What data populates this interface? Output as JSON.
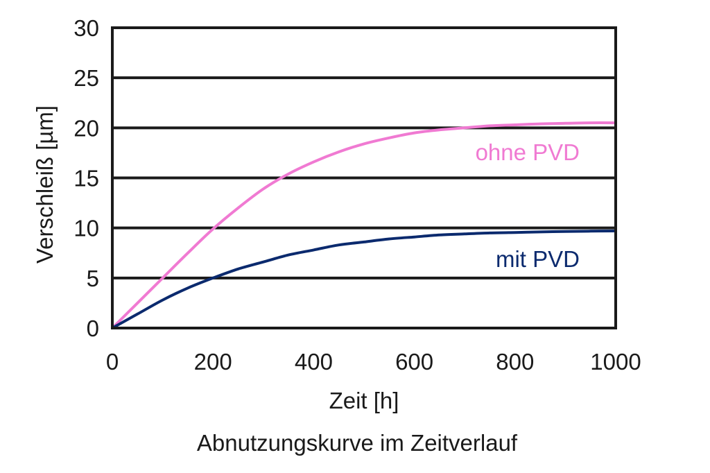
{
  "chart_data": {
    "type": "line",
    "title": "Abnutzungskurve im Zeitverlauf",
    "xlabel": "Zeit [h]",
    "ylabel": "Verschleiß [µm]",
    "xlim": [
      0,
      1000
    ],
    "ylim": [
      0,
      30
    ],
    "xticks": [
      0,
      200,
      400,
      600,
      800,
      1000
    ],
    "yticks": [
      0,
      5,
      10,
      15,
      20,
      25,
      30
    ],
    "grid": "horizontal",
    "series": [
      {
        "name": "ohne PVD",
        "color": "#f07ad2",
        "x": [
          0,
          50,
          100,
          150,
          200,
          250,
          300,
          350,
          400,
          450,
          500,
          550,
          600,
          650,
          700,
          750,
          800,
          850,
          900,
          950,
          1000
        ],
        "values": [
          0,
          2.5,
          5.0,
          7.5,
          9.9,
          12.0,
          13.9,
          15.4,
          16.6,
          17.6,
          18.4,
          19.0,
          19.5,
          19.8,
          20.0,
          20.2,
          20.3,
          20.4,
          20.45,
          20.5,
          20.5
        ]
      },
      {
        "name": "mit PVD",
        "color": "#0b2a6e",
        "x": [
          0,
          50,
          100,
          150,
          200,
          250,
          300,
          350,
          400,
          450,
          500,
          550,
          600,
          650,
          700,
          750,
          800,
          850,
          900,
          950,
          1000
        ],
        "values": [
          0,
          1.4,
          2.8,
          4.0,
          5.0,
          5.9,
          6.6,
          7.3,
          7.8,
          8.3,
          8.6,
          8.9,
          9.1,
          9.3,
          9.4,
          9.5,
          9.55,
          9.6,
          9.65,
          9.68,
          9.7
        ]
      }
    ]
  }
}
